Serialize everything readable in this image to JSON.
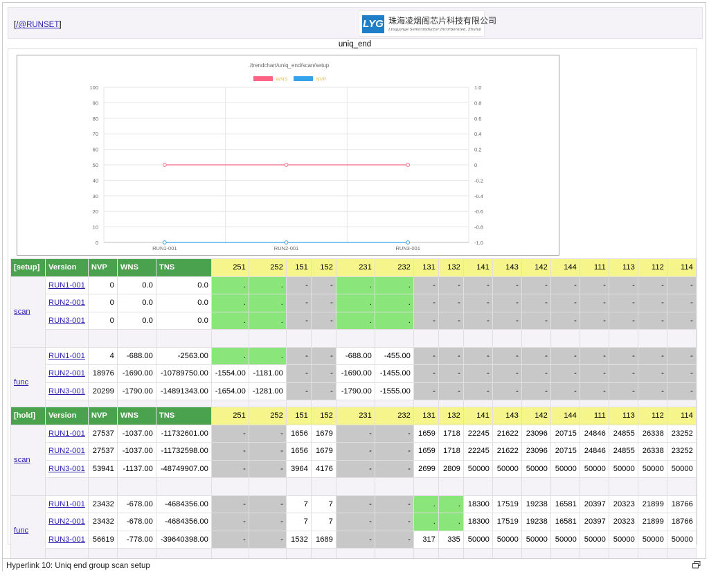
{
  "header": {
    "runset_link": "/@RUNSET",
    "runset_prefix": "[",
    "runset_suffix": "]",
    "logo_mark": "LYG",
    "logo_cn": "珠海凌烟阁芯片科技有限公司",
    "logo_en": "Lingyange Semiconductor Incorporated, Zhuhai"
  },
  "page_title": "uniq_end",
  "colors": {
    "wns_series": "#ff6384",
    "nvp_series": "#36a2eb",
    "header_green": "#4aa24e",
    "header_yellow": "#f5f58c",
    "cell_gray": "#c8c8c8",
    "cell_green": "#8ae57a"
  },
  "chart_data": {
    "type": "line",
    "title": "./trendchart/uniq_end/scan/setup",
    "categories": [
      "RUN1-001",
      "RUN2-001",
      "RUN3-001"
    ],
    "series": [
      {
        "name": "WNS",
        "axis": "right",
        "values": [
          0,
          0,
          0
        ],
        "color": "#ff6384"
      },
      {
        "name": "NVP",
        "axis": "left",
        "values": [
          0,
          0,
          0
        ],
        "color": "#36a2eb"
      }
    ],
    "y_left": {
      "min": 0,
      "max": 100,
      "ticks": [
        0,
        10,
        20,
        30,
        40,
        50,
        60,
        70,
        80,
        90,
        100
      ]
    },
    "y_right": {
      "min": -1.0,
      "max": 1.0,
      "ticks": [
        "1.0",
        "0.8",
        "0.6",
        "0.4",
        "0.2",
        "0",
        "-0.2",
        "-0.4",
        "-0.6",
        "-0.8",
        "-1.0"
      ]
    },
    "legend": "top-center",
    "grid": true
  },
  "setup_table": {
    "headers": [
      "[setup]",
      "Version",
      "NVP",
      "WNS",
      "TNS",
      "251",
      "252",
      "151",
      "152",
      "231",
      "232",
      "131",
      "132",
      "141",
      "143",
      "142",
      "144",
      "111",
      "113",
      "112",
      "114"
    ],
    "groups": [
      {
        "name": "scan",
        "rows": [
          {
            "version": "RUN1-001",
            "nvp": "0",
            "wns": "0.0",
            "tns": "0.0",
            "cells": [
              [
                "gr",
                "."
              ],
              [
                "gr",
                "."
              ],
              [
                "g",
                "-"
              ],
              [
                "g",
                "-"
              ],
              [
                "gr",
                "."
              ],
              [
                "gr",
                "."
              ],
              [
                "g",
                "-"
              ],
              [
                "g",
                "-"
              ],
              [
                "g",
                "-"
              ],
              [
                "g",
                "-"
              ],
              [
                "g",
                "-"
              ],
              [
                "g",
                "-"
              ],
              [
                "g",
                "-"
              ],
              [
                "g",
                "-"
              ],
              [
                "g",
                "-"
              ],
              [
                "g",
                "-"
              ]
            ]
          },
          {
            "version": "RUN2-001",
            "nvp": "0",
            "wns": "0.0",
            "tns": "0.0",
            "cells": [
              [
                "gr",
                "."
              ],
              [
                "gr",
                "."
              ],
              [
                "g",
                "-"
              ],
              [
                "g",
                "-"
              ],
              [
                "gr",
                "."
              ],
              [
                "gr",
                "."
              ],
              [
                "g",
                "-"
              ],
              [
                "g",
                "-"
              ],
              [
                "g",
                "-"
              ],
              [
                "g",
                "-"
              ],
              [
                "g",
                "-"
              ],
              [
                "g",
                "-"
              ],
              [
                "g",
                "-"
              ],
              [
                "g",
                "-"
              ],
              [
                "g",
                "-"
              ],
              [
                "g",
                "-"
              ]
            ]
          },
          {
            "version": "RUN3-001",
            "nvp": "0",
            "wns": "0.0",
            "tns": "0.0",
            "cells": [
              [
                "gr",
                "."
              ],
              [
                "gr",
                "."
              ],
              [
                "g",
                "-"
              ],
              [
                "g",
                "-"
              ],
              [
                "gr",
                "."
              ],
              [
                "gr",
                "."
              ],
              [
                "g",
                "-"
              ],
              [
                "g",
                "-"
              ],
              [
                "g",
                "-"
              ],
              [
                "g",
                "-"
              ],
              [
                "g",
                "-"
              ],
              [
                "g",
                "-"
              ],
              [
                "g",
                "-"
              ],
              [
                "g",
                "-"
              ],
              [
                "g",
                "-"
              ],
              [
                "g",
                "-"
              ]
            ]
          }
        ]
      },
      {
        "name": "func",
        "rows": [
          {
            "version": "RUN1-001",
            "nvp": "4",
            "wns": "-688.00",
            "tns": "-2563.00",
            "cells": [
              [
                "gr",
                "."
              ],
              [
                "gr",
                "."
              ],
              [
                "g",
                "-"
              ],
              [
                "g",
                "-"
              ],
              [
                "w",
                "-688.00"
              ],
              [
                "w",
                "-455.00"
              ],
              [
                "g",
                "-"
              ],
              [
                "g",
                "-"
              ],
              [
                "g",
                "-"
              ],
              [
                "g",
                "-"
              ],
              [
                "g",
                "-"
              ],
              [
                "g",
                "-"
              ],
              [
                "g",
                "-"
              ],
              [
                "g",
                "-"
              ],
              [
                "g",
                "-"
              ],
              [
                "g",
                "-"
              ]
            ]
          },
          {
            "version": "RUN2-001",
            "nvp": "18976",
            "wns": "-1690.00",
            "tns": "-10789750.00",
            "cells": [
              [
                "w",
                "-1554.00"
              ],
              [
                "w",
                "-1181.00"
              ],
              [
                "g",
                "-"
              ],
              [
                "g",
                "-"
              ],
              [
                "w",
                "-1690.00"
              ],
              [
                "w",
                "-1455.00"
              ],
              [
                "g",
                "-"
              ],
              [
                "g",
                "-"
              ],
              [
                "g",
                "-"
              ],
              [
                "g",
                "-"
              ],
              [
                "g",
                "-"
              ],
              [
                "g",
                "-"
              ],
              [
                "g",
                "-"
              ],
              [
                "g",
                "-"
              ],
              [
                "g",
                "-"
              ],
              [
                "g",
                "-"
              ]
            ]
          },
          {
            "version": "RUN3-001",
            "nvp": "20299",
            "wns": "-1790.00",
            "tns": "-14891343.00",
            "cells": [
              [
                "w",
                "-1654.00"
              ],
              [
                "w",
                "-1281.00"
              ],
              [
                "g",
                "-"
              ],
              [
                "g",
                "-"
              ],
              [
                "w",
                "-1790.00"
              ],
              [
                "w",
                "-1555.00"
              ],
              [
                "g",
                "-"
              ],
              [
                "g",
                "-"
              ],
              [
                "g",
                "-"
              ],
              [
                "g",
                "-"
              ],
              [
                "g",
                "-"
              ],
              [
                "g",
                "-"
              ],
              [
                "g",
                "-"
              ],
              [
                "g",
                "-"
              ],
              [
                "g",
                "-"
              ],
              [
                "g",
                "-"
              ]
            ]
          }
        ]
      }
    ]
  },
  "hold_table": {
    "headers": [
      "[hold]",
      "Version",
      "NVP",
      "WNS",
      "TNS",
      "251",
      "252",
      "151",
      "152",
      "231",
      "232",
      "131",
      "132",
      "141",
      "143",
      "142",
      "144",
      "111",
      "113",
      "112",
      "114"
    ],
    "groups": [
      {
        "name": "scan",
        "rows": [
          {
            "version": "RUN1-001",
            "nvp": "27537",
            "wns": "-1037.00",
            "tns": "-11732601.00",
            "cells": [
              [
                "g",
                "-"
              ],
              [
                "g",
                "-"
              ],
              [
                "w",
                "1656"
              ],
              [
                "w",
                "1679"
              ],
              [
                "g",
                "-"
              ],
              [
                "g",
                "-"
              ],
              [
                "w",
                "1659"
              ],
              [
                "w",
                "1718"
              ],
              [
                "w",
                "22245"
              ],
              [
                "w",
                "21622"
              ],
              [
                "w",
                "23096"
              ],
              [
                "w",
                "20715"
              ],
              [
                "w",
                "24846"
              ],
              [
                "w",
                "24855"
              ],
              [
                "w",
                "26338"
              ],
              [
                "w",
                "23252"
              ]
            ]
          },
          {
            "version": "RUN2-001",
            "nvp": "27537",
            "wns": "-1037.00",
            "tns": "-11732598.00",
            "cells": [
              [
                "g",
                "-"
              ],
              [
                "g",
                "-"
              ],
              [
                "w",
                "1656"
              ],
              [
                "w",
                "1679"
              ],
              [
                "g",
                "-"
              ],
              [
                "g",
                "-"
              ],
              [
                "w",
                "1659"
              ],
              [
                "w",
                "1718"
              ],
              [
                "w",
                "22245"
              ],
              [
                "w",
                "21622"
              ],
              [
                "w",
                "23096"
              ],
              [
                "w",
                "20715"
              ],
              [
                "w",
                "24846"
              ],
              [
                "w",
                "24855"
              ],
              [
                "w",
                "26338"
              ],
              [
                "w",
                "23252"
              ]
            ]
          },
          {
            "version": "RUN3-001",
            "nvp": "53941",
            "wns": "-1137.00",
            "tns": "-48749907.00",
            "cells": [
              [
                "g",
                "-"
              ],
              [
                "g",
                "-"
              ],
              [
                "w",
                "3964"
              ],
              [
                "w",
                "4176"
              ],
              [
                "g",
                "-"
              ],
              [
                "g",
                "-"
              ],
              [
                "w",
                "2699"
              ],
              [
                "w",
                "2809"
              ],
              [
                "w",
                "50000"
              ],
              [
                "w",
                "50000"
              ],
              [
                "w",
                "50000"
              ],
              [
                "w",
                "50000"
              ],
              [
                "w",
                "50000"
              ],
              [
                "w",
                "50000"
              ],
              [
                "w",
                "50000"
              ],
              [
                "w",
                "50000"
              ]
            ]
          }
        ]
      },
      {
        "name": "func",
        "rows": [
          {
            "version": "RUN1-001",
            "nvp": "23432",
            "wns": "-678.00",
            "tns": "-4684356.00",
            "cells": [
              [
                "g",
                "-"
              ],
              [
                "g",
                "-"
              ],
              [
                "w",
                "7"
              ],
              [
                "w",
                "7"
              ],
              [
                "g",
                "-"
              ],
              [
                "g",
                "-"
              ],
              [
                "gr",
                "."
              ],
              [
                "gr",
                "."
              ],
              [
                "w",
                "18300"
              ],
              [
                "w",
                "17519"
              ],
              [
                "w",
                "19238"
              ],
              [
                "w",
                "16581"
              ],
              [
                "w",
                "20397"
              ],
              [
                "w",
                "20323"
              ],
              [
                "w",
                "21899"
              ],
              [
                "w",
                "18766"
              ]
            ]
          },
          {
            "version": "RUN2-001",
            "nvp": "23432",
            "wns": "-678.00",
            "tns": "-4684356.00",
            "cells": [
              [
                "g",
                "-"
              ],
              [
                "g",
                "-"
              ],
              [
                "w",
                "7"
              ],
              [
                "w",
                "7"
              ],
              [
                "g",
                "-"
              ],
              [
                "g",
                "-"
              ],
              [
                "gr",
                "."
              ],
              [
                "gr",
                "."
              ],
              [
                "w",
                "18300"
              ],
              [
                "w",
                "17519"
              ],
              [
                "w",
                "19238"
              ],
              [
                "w",
                "16581"
              ],
              [
                "w",
                "20397"
              ],
              [
                "w",
                "20323"
              ],
              [
                "w",
                "21899"
              ],
              [
                "w",
                "18766"
              ]
            ]
          },
          {
            "version": "RUN3-001",
            "nvp": "56619",
            "wns": "-778.00",
            "tns": "-39640398.00",
            "cells": [
              [
                "g",
                "-"
              ],
              [
                "g",
                "-"
              ],
              [
                "w",
                "1532"
              ],
              [
                "w",
                "1689"
              ],
              [
                "g",
                "-"
              ],
              [
                "g",
                "-"
              ],
              [
                "w",
                "317"
              ],
              [
                "w",
                "335"
              ],
              [
                "w",
                "50000"
              ],
              [
                "w",
                "50000"
              ],
              [
                "w",
                "50000"
              ],
              [
                "w",
                "50000"
              ],
              [
                "w",
                "50000"
              ],
              [
                "w",
                "50000"
              ],
              [
                "w",
                "50000"
              ],
              [
                "w",
                "50000"
              ]
            ]
          }
        ]
      }
    ]
  },
  "status": {
    "text": "Hyperlink 10: Uniq end group scan setup"
  }
}
